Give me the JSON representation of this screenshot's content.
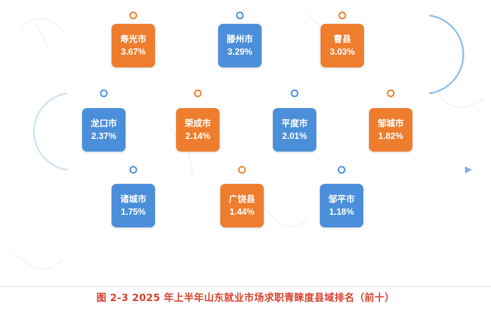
{
  "caption": "图 2-3    2025 年上半年山东就业市场求职青睐度县域排名（前十）",
  "colors": {
    "orange": "#ee7d2e",
    "blue": "#4b8fda",
    "line": "#5b9bd5",
    "caption": "#d7412f"
  },
  "items": [
    {
      "name": "寿光市",
      "value": "3.67%",
      "color": "orange"
    },
    {
      "name": "滕州市",
      "value": "3.29%",
      "color": "blue"
    },
    {
      "name": "曹县",
      "value": "3.03%",
      "color": "orange"
    },
    {
      "name": "龙口市",
      "value": "2.37%",
      "color": "blue"
    },
    {
      "name": "荣成市",
      "value": "2.14%",
      "color": "orange"
    },
    {
      "name": "平度市",
      "value": "2.01%",
      "color": "blue"
    },
    {
      "name": "邹城市",
      "value": "1.82%",
      "color": "orange"
    },
    {
      "name": "诸城市",
      "value": "1.75%",
      "color": "blue"
    },
    {
      "name": "广饶县",
      "value": "1.44%",
      "color": "orange"
    },
    {
      "name": "邹平市",
      "value": "1.18%",
      "color": "blue"
    }
  ]
}
